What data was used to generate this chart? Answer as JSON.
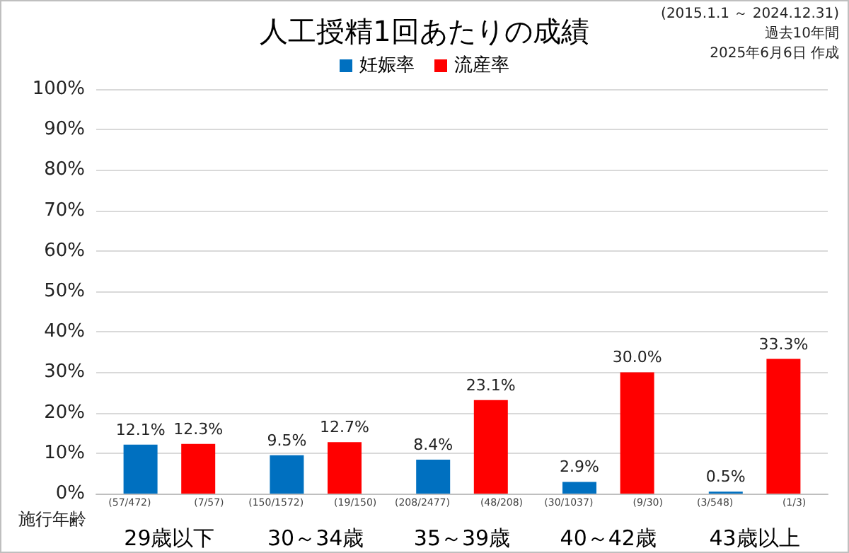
{
  "chart_data": {
    "type": "bar",
    "title": "人工授精1回あたりの成績",
    "xlabel": "施行年齢",
    "categories": [
      "29歳以下",
      "30～34歳",
      "35～39歳",
      "40～42歳",
      "43歳以上"
    ],
    "series": [
      {
        "name": "妊娠率",
        "color": "#0070c0",
        "values": [
          12.1,
          9.5,
          8.4,
          2.9,
          0.5
        ],
        "value_labels": [
          "12.1%",
          "9.5%",
          "8.4%",
          "2.9%",
          "0.5%"
        ]
      },
      {
        "name": "流産率",
        "color": "#ff0000",
        "values": [
          12.3,
          12.7,
          23.1,
          30.0,
          33.3
        ],
        "value_labels": [
          "12.3%",
          "12.7%",
          "23.1%",
          "30.0%",
          "33.3%"
        ]
      }
    ],
    "ylim": [
      0,
      100
    ],
    "yticks": [
      {
        "value": 0,
        "label": "0%"
      },
      {
        "value": 10,
        "label": "10%"
      },
      {
        "value": 20,
        "label": "20%"
      },
      {
        "value": 30,
        "label": "30%"
      },
      {
        "value": 40,
        "label": "40%"
      },
      {
        "value": 50,
        "label": "50%"
      },
      {
        "value": 60,
        "label": "60%"
      },
      {
        "value": 70,
        "label": "70%"
      },
      {
        "value": 80,
        "label": "80%"
      },
      {
        "value": 90,
        "label": "90%"
      },
      {
        "value": 100,
        "label": "100%"
      }
    ],
    "grid": "y",
    "legend": "top",
    "annotations": [
      "(2015.1.1 ～ 2024.12.31)",
      "過去10年間",
      "2025年6月6日 作成",
      "(57/472)",
      "(7/57)",
      "(150/1572)",
      "(19/150)",
      "(208/2477)",
      "(48/208)",
      "(30/1037)",
      "(9/30)",
      "(3/548)",
      "(1/3)"
    ]
  }
}
